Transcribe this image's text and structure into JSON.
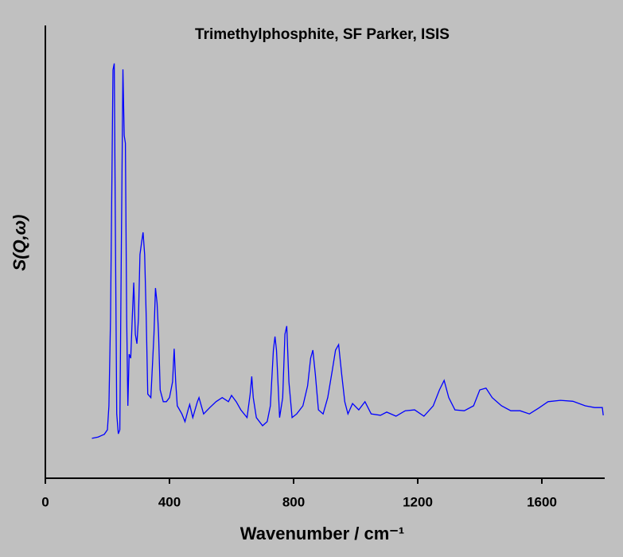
{
  "chart_data": {
    "type": "line",
    "title": "Trimethylphosphite, SF Parker, ISIS",
    "xlabel": "Wavenumber / cm⁻¹",
    "ylabel": "S(Q,ω)",
    "xlim": [
      0,
      1800
    ],
    "xticks": [
      0,
      400,
      800,
      1200,
      1600
    ],
    "ylim": [
      0,
      100
    ],
    "title_color": "#0000ff",
    "x": [
      150,
      170,
      190,
      200,
      205,
      210,
      215,
      218,
      222,
      226,
      230,
      235,
      240,
      245,
      250,
      254,
      258,
      262,
      266,
      270,
      275,
      280,
      285,
      290,
      295,
      300,
      305,
      310,
      315,
      320,
      325,
      330,
      340,
      350,
      355,
      360,
      365,
      370,
      380,
      390,
      400,
      410,
      415,
      420,
      425,
      440,
      450,
      460,
      465,
      475,
      490,
      495,
      510,
      530,
      550,
      570,
      590,
      600,
      615,
      630,
      650,
      660,
      665,
      670,
      680,
      700,
      715,
      725,
      735,
      740,
      745,
      755,
      765,
      772,
      778,
      785,
      795,
      810,
      830,
      845,
      855,
      862,
      870,
      880,
      895,
      910,
      925,
      935,
      945,
      955,
      965,
      975,
      990,
      1010,
      1030,
      1050,
      1080,
      1100,
      1130,
      1160,
      1190,
      1220,
      1250,
      1270,
      1285,
      1300,
      1320,
      1350,
      1380,
      1400,
      1420,
      1440,
      1470,
      1500,
      1530,
      1560,
      1590,
      1620,
      1660,
      1700,
      1740,
      1770,
      1795,
      1798
    ],
    "series": [
      {
        "name": "Trimethylphosphite",
        "color": "#0000ff",
        "values": [
          8.8,
          9.1,
          9.7,
          10.7,
          16,
          35.3,
          70.5,
          90.2,
          91.6,
          52.9,
          14.2,
          9.8,
          10.7,
          52.9,
          90.3,
          75.7,
          74,
          35.3,
          16,
          27.4,
          26.5,
          35.3,
          43.2,
          31.8,
          29.7,
          35.3,
          49.4,
          52,
          54.3,
          49.4,
          35.3,
          18.6,
          17.8,
          31.8,
          42,
          38.7,
          31.8,
          19.5,
          16.9,
          16.9,
          17.8,
          21.3,
          28.6,
          21.3,
          16,
          14.2,
          12.5,
          15.1,
          16.3,
          13.4,
          16.9,
          17.8,
          14.2,
          15.6,
          16.9,
          17.8,
          16.9,
          18.3,
          16.9,
          15.1,
          13.4,
          18.6,
          22.5,
          17.8,
          13.4,
          11.6,
          12.5,
          16,
          28.3,
          31.3,
          28.3,
          13.4,
          17.8,
          31.8,
          33.6,
          21.3,
          13.4,
          14.2,
          16,
          20.4,
          26.5,
          28.3,
          23,
          15.1,
          14.2,
          17.8,
          23.9,
          28.3,
          29.5,
          23,
          16.9,
          14.2,
          16.5,
          15.1,
          16.9,
          14.2,
          13.9,
          14.6,
          13.7,
          14.9,
          15.1,
          13.7,
          16,
          19.5,
          21.6,
          17.8,
          15.1,
          14.9,
          16,
          19.5,
          19.9,
          17.8,
          16,
          14.9,
          14.9,
          14.2,
          15.5,
          16.9,
          17.2,
          17,
          16,
          15.6,
          15.6,
          13.9
        ]
      }
    ]
  }
}
